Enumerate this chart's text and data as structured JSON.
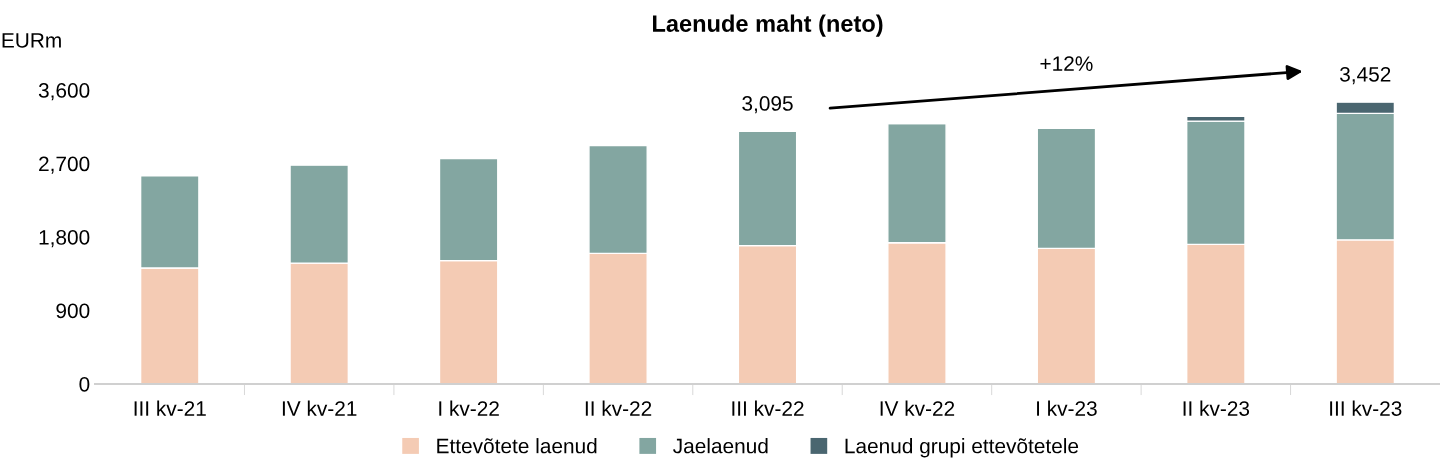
{
  "chart_data": {
    "type": "bar",
    "title": "Laenude maht (neto)",
    "ylabel": "EURm",
    "stacked": true,
    "categories": [
      "III kv-21",
      "IV kv-21",
      "I kv-22",
      "II kv-22",
      "III kv-22",
      "IV kv-22",
      "I kv-23",
      "II kv-23",
      "III kv-23"
    ],
    "series": [
      {
        "name": "Ettevõtete laenud",
        "color": "#f4cbb4",
        "values": [
          1420,
          1480,
          1510,
          1600,
          1695,
          1730,
          1660,
          1710,
          1765
        ]
      },
      {
        "name": "Jaelaenud",
        "color": "#83a6a1",
        "values": [
          1130,
          1200,
          1250,
          1320,
          1400,
          1460,
          1470,
          1510,
          1550
        ]
      },
      {
        "name": "Laenud grupi ettevõtetele",
        "color": "#4a6670",
        "values": [
          null,
          null,
          null,
          null,
          null,
          10,
          10,
          60,
          137
        ]
      }
    ],
    "totals": [
      null,
      null,
      null,
      null,
      "3,095",
      null,
      null,
      null,
      "3,452"
    ],
    "annotations": [
      "+12%"
    ],
    "ylim": [
      0,
      3600
    ],
    "yticks": [
      0,
      900,
      {
        "value": 1800,
        "label": "1,800"
      },
      {
        "value": 2700,
        "label": "2,700"
      },
      {
        "value": 3600,
        "label": "3,600"
      }
    ],
    "grid": false,
    "legend": "bottom"
  }
}
